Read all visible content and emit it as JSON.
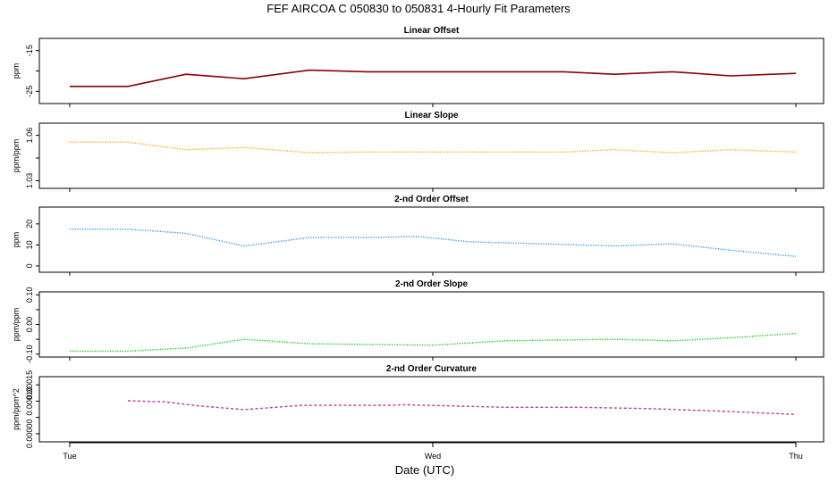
{
  "title": "FEF   AIRCOA C   050830 to 050831   4-Hourly Fit Parameters",
  "x_axis": {
    "title": "Date (UTC)",
    "tick_labels": [
      "Tue",
      "Wed",
      "Thu"
    ],
    "range_days": [
      0,
      2
    ]
  },
  "chart_data": [
    {
      "type": "line",
      "title": "Linear Offset",
      "ylabel": "ppm",
      "color": "#8b0000",
      "style": "solid",
      "ylim": [
        -28,
        -12
      ],
      "yticks": [
        -25,
        -20,
        -15
      ],
      "ytick_labels": [
        "-25",
        "",
        "-15"
      ],
      "series": [
        {
          "x": [
            0.0,
            0.16,
            0.32,
            0.48,
            0.66,
            0.82,
            1.0,
            1.2,
            1.36,
            1.5,
            1.66,
            1.82,
            2.0
          ],
          "y": [
            -23.8,
            -23.8,
            -20.8,
            -21.9,
            -19.8,
            -20.2,
            -20.2,
            -20.2,
            -20.2,
            -20.8,
            -20.2,
            -21.2,
            -20.6
          ]
        }
      ]
    },
    {
      "type": "line",
      "title": "Linear Slope",
      "ylabel": "ppm/ppm",
      "color": "#ffa500",
      "style": "dotted",
      "ylim": [
        1.025,
        1.068
      ],
      "yticks": [
        1.03,
        1.045,
        1.06
      ],
      "ytick_labels": [
        "1.03",
        "",
        "1.06"
      ],
      "series": [
        {
          "x": [
            0.0,
            0.16,
            0.32,
            0.48,
            0.66,
            0.82,
            1.0,
            1.2,
            1.36,
            1.5,
            1.66,
            1.82,
            2.0
          ],
          "y": [
            1.0555,
            1.0555,
            1.0505,
            1.052,
            1.0485,
            1.049,
            1.049,
            1.049,
            1.049,
            1.0505,
            1.0485,
            1.0505,
            1.049
          ]
        }
      ]
    },
    {
      "type": "line",
      "title": "2-nd Order Offset",
      "ylabel": "ppm",
      "color": "#1e90ff",
      "style": "dotted",
      "ylim": [
        -3,
        28
      ],
      "yticks": [
        0,
        10,
        20
      ],
      "ytick_labels": [
        "0",
        "10",
        "20"
      ],
      "series": [
        {
          "x": [
            0.0,
            0.16,
            0.32,
            0.48,
            0.66,
            0.82,
            0.96,
            1.1,
            1.3,
            1.5,
            1.66,
            1.82,
            2.0
          ],
          "y": [
            17.5,
            17.5,
            15.5,
            9.5,
            13.5,
            13.5,
            14,
            11.5,
            10.5,
            9.5,
            10.5,
            7.5,
            4.5
          ]
        }
      ]
    },
    {
      "type": "line",
      "title": "2-nd Order Slope",
      "ylabel": "ppm/ppm",
      "color": "#00cc00",
      "style": "dotted",
      "ylim": [
        -0.11,
        0.11
      ],
      "yticks": [
        -0.1,
        -0.05,
        0,
        0.05,
        0.1
      ],
      "ytick_labels": [
        "-0.10",
        "",
        "0.00",
        "",
        "0.10"
      ],
      "series": [
        {
          "x": [
            0.0,
            0.16,
            0.32,
            0.48,
            0.66,
            1.0,
            1.2,
            1.5,
            1.66,
            1.82,
            2.0
          ],
          "y": [
            -0.09,
            -0.09,
            -0.08,
            -0.05,
            -0.065,
            -0.07,
            -0.055,
            -0.05,
            -0.055,
            -0.045,
            -0.03
          ]
        }
      ]
    },
    {
      "type": "line",
      "title": "2-nd Order Curvature",
      "ylabel": "ppm/ppm^2",
      "color": "#cc3399",
      "style": "dashed",
      "ylim": [
        -2.5e-05,
        0.000175
      ],
      "yticks": [
        0,
        5e-05,
        0.0001,
        0.00015
      ],
      "ytick_labels": [
        "0.00000",
        "",
        "0.00010",
        "0.00015"
      ],
      "series": [
        {
          "x": [
            0.16,
            0.26,
            0.36,
            0.48,
            0.64,
            0.88,
            0.92,
            1.2,
            1.4,
            1.6,
            1.82,
            2.0
          ],
          "y": [
            0.000101,
            9.8e-05,
            8.5e-05,
            7.4e-05,
            8.7e-05,
            8.7e-05,
            8.9e-05,
            8.1e-05,
            8.1e-05,
            7.7e-05,
            6.8e-05,
            5.9e-05
          ]
        }
      ]
    }
  ]
}
